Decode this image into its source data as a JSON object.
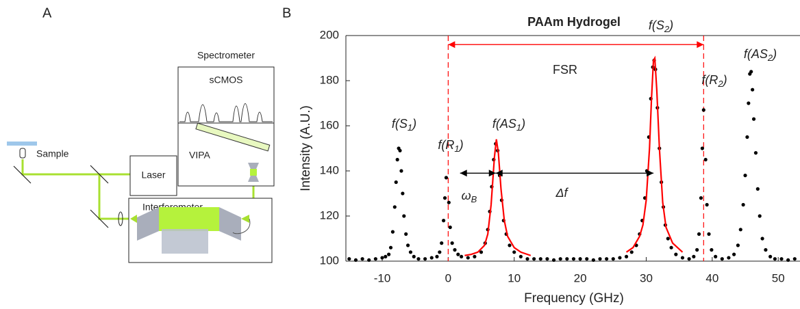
{
  "panels": {
    "a": "A",
    "b": "B"
  },
  "diagram": {
    "spectrometer": "Spectrometer",
    "camera": "sCMOS",
    "vipa": "VIPA",
    "sample": "Sample",
    "laser": "Laser",
    "interferometer": "Interferometer"
  },
  "chart_data": {
    "type": "scatter",
    "title": "PAAm Hydrogel",
    "x_label": "Frequency (GHz)",
    "y_label": "Intensity (A.U.)",
    "xlim": [
      -15.5,
      53.3
    ],
    "ylim": [
      100,
      200
    ],
    "xticks": [
      -10,
      0,
      10,
      20,
      30,
      40,
      50
    ],
    "yticks": [
      100,
      120,
      140,
      160,
      180,
      200
    ],
    "series": [
      {
        "color": "#000000",
        "x": [
          -15,
          -14,
          -13,
          -12,
          -11,
          -10,
          -9.5,
          -9,
          -8.7,
          -8.4,
          -8.1,
          -7.9,
          -7.7,
          -7.5,
          -7.3,
          -7.1,
          -6.9,
          -6.7,
          -6.4,
          -6.1,
          -5.7,
          -5.2,
          -4.5,
          -3.5,
          -2.5,
          -1.7,
          -1.3,
          -1,
          -0.7,
          -0.5,
          -0.3,
          0.1,
          0.3,
          0.6,
          1,
          1.5,
          2,
          3,
          4,
          5,
          5.6,
          6,
          6.3,
          6.6,
          6.9,
          7.2,
          7.5,
          7.8,
          8.1,
          8.4,
          8.8,
          9.3,
          10,
          11,
          12,
          13,
          14,
          15,
          16,
          17,
          18,
          19,
          20,
          21,
          22,
          23,
          24,
          25,
          26,
          27,
          27.8,
          28.5,
          29,
          29.4,
          29.8,
          30.1,
          30.4,
          30.7,
          31,
          31.2,
          31.4,
          31.7,
          32,
          32.3,
          32.6,
          32.9,
          33.3,
          33.8,
          34.5,
          35.5,
          36.5,
          37.2,
          37.7,
          38,
          38.3,
          38.5,
          38.7,
          39,
          39.2,
          39.5,
          39.9,
          40.5,
          41.5,
          42.5,
          43.3,
          43.9,
          44.3,
          44.7,
          45,
          45.3,
          45.5,
          45.7,
          45.9,
          46.1,
          46.3,
          46.6,
          46.9,
          47.2,
          47.6,
          48.1,
          48.8,
          49.5,
          50.5,
          51.5,
          52.5
        ],
        "values": [
          101,
          100.5,
          101,
          100.5,
          101,
          101.5,
          102,
          103,
          106,
          113,
          124,
          135,
          145,
          150,
          149,
          140,
          130,
          120,
          112,
          107,
          104,
          102,
          101,
          101,
          101.5,
          102,
          104,
          108,
          118,
          128,
          137,
          126,
          115,
          108,
          105,
          103,
          102,
          101.5,
          102,
          104,
          108,
          114,
          122,
          133,
          145,
          152,
          149,
          138,
          127,
          118,
          112,
          107,
          104,
          102,
          101,
          101,
          101,
          101,
          100.5,
          101,
          101,
          101,
          101,
          101,
          100.5,
          101,
          101,
          101,
          101.5,
          102,
          104,
          107,
          112,
          118,
          128,
          140,
          155,
          172,
          186,
          189,
          185,
          168,
          150,
          135,
          124,
          116,
          110,
          106,
          103,
          101.5,
          101,
          102,
          105,
          112,
          128,
          150,
          167,
          145,
          125,
          112,
          105,
          102,
          101,
          101.5,
          103,
          107,
          114,
          125,
          138,
          155,
          170,
          183,
          184,
          176,
          163,
          148,
          132,
          120,
          110,
          105,
          102,
          101,
          101,
          100.5,
          101
        ]
      },
      {
        "type": "line",
        "color": "#ff0000",
        "x": [
          2.5,
          3.5,
          4.5,
          5.5,
          6,
          6.5,
          7,
          7.3,
          7.6,
          8,
          8.5,
          9,
          10,
          11,
          12.5
        ],
        "values": [
          102.5,
          103,
          104,
          107,
          112,
          125,
          146,
          154,
          148,
          132,
          118,
          111,
          106,
          104,
          102.5
        ]
      },
      {
        "type": "line",
        "color": "#ff0000",
        "x": [
          27,
          28,
          29,
          29.5,
          30,
          30.5,
          30.8,
          31.1,
          31.3,
          31.6,
          32,
          32.5,
          33,
          34,
          35.5
        ],
        "values": [
          104,
          106,
          111,
          116,
          127,
          150,
          172,
          189,
          190,
          176,
          150,
          126,
          115,
          108,
          104
        ]
      }
    ],
    "vlines": [
      0,
      38.7
    ],
    "vline_color": "#ff0000",
    "arrows": [
      {
        "from": 0,
        "to": 38.7,
        "y": 196,
        "color": "#ff0000"
      },
      {
        "from": 1.8,
        "to": 7.2,
        "y": 139,
        "color": "#000000"
      },
      {
        "from": 7.2,
        "to": 31.1,
        "y": 139,
        "color": "#000000"
      }
    ],
    "annotations": [
      {
        "main": "f(S",
        "sub": "1",
        "end": ")"
      },
      {
        "main": "f(R",
        "sub": "1",
        "end": ")"
      },
      {
        "main": "f(AS",
        "sub": "1",
        "end": ")"
      },
      {
        "main": "f(S",
        "sub": "2",
        "end": ")"
      },
      {
        "main": "f(R",
        "sub": "2",
        "end": ")"
      },
      {
        "main": "f(AS",
        "sub": "2",
        "end": ")"
      },
      {
        "main": "ω",
        "sub": "B"
      },
      {
        "main": "Δf"
      },
      {
        "main": "FSR",
        "color": "#ff0000"
      }
    ]
  }
}
